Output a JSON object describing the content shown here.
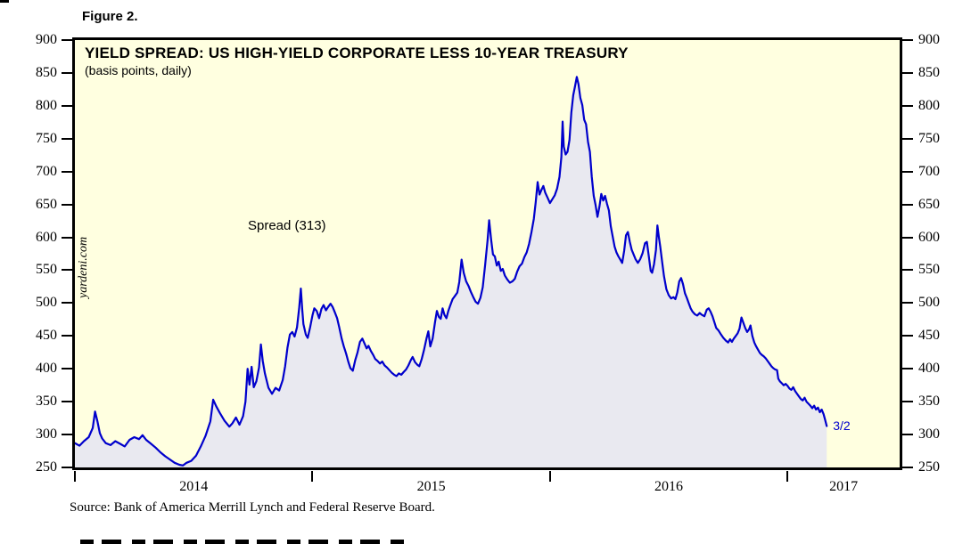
{
  "figure_label": "Figure 2.",
  "chart": {
    "title": "YIELD SPREAD: US HIGH-YIELD CORPORATE LESS 10-YEAR TREASURY",
    "subtitle": "(basis points, daily)",
    "series_label": "Spread (313)",
    "last_date_label": "3/2",
    "watermark": "yardeni.com",
    "colors": {
      "line": "#0000CC",
      "fill": "#E9E9F0",
      "plot_bg": "#FFFFE0",
      "annotation": "#0000CC",
      "axis": "#000000"
    }
  },
  "source_note": "Source: Bank of America Merrill Lynch and Federal Reserve Board.",
  "chart_data": {
    "type": "area",
    "title": "YIELD SPREAD: US HIGH-YIELD CORPORATE LESS 10-YEAR TREASURY",
    "subtitle": "(basis points, daily)",
    "ylabel": "basis points",
    "grid": false,
    "legend": "inline label",
    "y_range": [
      250,
      900
    ],
    "y_ticks": [
      900,
      850,
      800,
      750,
      700,
      650,
      600,
      550,
      500,
      450,
      400,
      350,
      300,
      250
    ],
    "x_range_years": [
      2014.0,
      2017.472
    ],
    "x_ticks_years": [
      2014,
      2015,
      2016,
      2017
    ],
    "x_tick_labels": [
      "2014",
      "2015",
      "2016",
      "2017"
    ],
    "last_point": {
      "date_label": "3/2",
      "value": 313
    },
    "min_point": {
      "year": 2014.455,
      "value": 253
    },
    "max_point": {
      "year": 2016.113,
      "value": 844
    },
    "points": [
      [
        2014.0,
        287
      ],
      [
        2014.019,
        283
      ],
      [
        2014.038,
        290
      ],
      [
        2014.058,
        296
      ],
      [
        2014.075,
        310
      ],
      [
        2014.085,
        335
      ],
      [
        2014.095,
        320
      ],
      [
        2014.105,
        302
      ],
      [
        2014.115,
        294
      ],
      [
        2014.13,
        287
      ],
      [
        2014.15,
        284
      ],
      [
        2014.17,
        290
      ],
      [
        2014.19,
        286
      ],
      [
        2014.21,
        282
      ],
      [
        2014.23,
        292
      ],
      [
        2014.25,
        296
      ],
      [
        2014.27,
        293
      ],
      [
        2014.285,
        299
      ],
      [
        2014.3,
        292
      ],
      [
        2014.32,
        286
      ],
      [
        2014.34,
        280
      ],
      [
        2014.36,
        273
      ],
      [
        2014.38,
        267
      ],
      [
        2014.4,
        262
      ],
      [
        2014.42,
        257
      ],
      [
        2014.44,
        254
      ],
      [
        2014.455,
        253
      ],
      [
        2014.47,
        257
      ],
      [
        2014.49,
        260
      ],
      [
        2014.51,
        268
      ],
      [
        2014.53,
        282
      ],
      [
        2014.55,
        298
      ],
      [
        2014.57,
        320
      ],
      [
        2014.582,
        353
      ],
      [
        2014.595,
        343
      ],
      [
        2014.61,
        333
      ],
      [
        2014.63,
        321
      ],
      [
        2014.65,
        312
      ],
      [
        2014.663,
        317
      ],
      [
        2014.678,
        326
      ],
      [
        2014.693,
        315
      ],
      [
        2014.708,
        328
      ],
      [
        2014.718,
        350
      ],
      [
        2014.727,
        400
      ],
      [
        2014.735,
        376
      ],
      [
        2014.744,
        403
      ],
      [
        2014.753,
        372
      ],
      [
        2014.764,
        381
      ],
      [
        2014.775,
        402
      ],
      [
        2014.783,
        437
      ],
      [
        2014.791,
        412
      ],
      [
        2014.8,
        393
      ],
      [
        2014.815,
        371
      ],
      [
        2014.83,
        362
      ],
      [
        2014.845,
        371
      ],
      [
        2014.86,
        367
      ],
      [
        2014.875,
        383
      ],
      [
        2014.885,
        404
      ],
      [
        2014.895,
        432
      ],
      [
        2014.905,
        452
      ],
      [
        2014.915,
        456
      ],
      [
        2014.925,
        449
      ],
      [
        2014.935,
        463
      ],
      [
        2014.944,
        492
      ],
      [
        2014.951,
        522
      ],
      [
        2014.957,
        490
      ],
      [
        2014.962,
        468
      ],
      [
        2014.972,
        452
      ],
      [
        2014.98,
        447
      ],
      [
        2014.99,
        463
      ],
      [
        2015.0,
        481
      ],
      [
        2015.008,
        492
      ],
      [
        2015.018,
        488
      ],
      [
        2015.028,
        477
      ],
      [
        2015.038,
        491
      ],
      [
        2015.047,
        497
      ],
      [
        2015.057,
        489
      ],
      [
        2015.066,
        494
      ],
      [
        2015.076,
        499
      ],
      [
        2015.085,
        494
      ],
      [
        2015.094,
        486
      ],
      [
        2015.104,
        477
      ],
      [
        2015.113,
        463
      ],
      [
        2015.123,
        446
      ],
      [
        2015.132,
        434
      ],
      [
        2015.142,
        423
      ],
      [
        2015.151,
        411
      ],
      [
        2015.16,
        401
      ],
      [
        2015.17,
        397
      ],
      [
        2015.18,
        413
      ],
      [
        2015.19,
        425
      ],
      [
        2015.2,
        441
      ],
      [
        2015.21,
        446
      ],
      [
        2015.22,
        438
      ],
      [
        2015.228,
        431
      ],
      [
        2015.236,
        435
      ],
      [
        2015.246,
        427
      ],
      [
        2015.256,
        421
      ],
      [
        2015.264,
        415
      ],
      [
        2015.274,
        412
      ],
      [
        2015.284,
        408
      ],
      [
        2015.294,
        411
      ],
      [
        2015.304,
        405
      ],
      [
        2015.314,
        402
      ],
      [
        2015.324,
        398
      ],
      [
        2015.334,
        394
      ],
      [
        2015.344,
        391
      ],
      [
        2015.354,
        389
      ],
      [
        2015.364,
        393
      ],
      [
        2015.374,
        391
      ],
      [
        2015.384,
        395
      ],
      [
        2015.394,
        399
      ],
      [
        2015.404,
        405
      ],
      [
        2015.414,
        413
      ],
      [
        2015.422,
        418
      ],
      [
        2015.432,
        410
      ],
      [
        2015.442,
        406
      ],
      [
        2015.45,
        404
      ],
      [
        2015.46,
        415
      ],
      [
        2015.47,
        429
      ],
      [
        2015.48,
        446
      ],
      [
        2015.488,
        457
      ],
      [
        2015.496,
        434
      ],
      [
        2015.506,
        446
      ],
      [
        2015.516,
        471
      ],
      [
        2015.524,
        488
      ],
      [
        2015.532,
        479
      ],
      [
        2015.54,
        476
      ],
      [
        2015.548,
        492
      ],
      [
        2015.556,
        482
      ],
      [
        2015.564,
        477
      ],
      [
        2015.572,
        488
      ],
      [
        2015.58,
        496
      ],
      [
        2015.59,
        506
      ],
      [
        2015.6,
        511
      ],
      [
        2015.61,
        516
      ],
      [
        2015.618,
        532
      ],
      [
        2015.628,
        566
      ],
      [
        2015.637,
        546
      ],
      [
        2015.647,
        533
      ],
      [
        2015.657,
        526
      ],
      [
        2015.667,
        517
      ],
      [
        2015.677,
        509
      ],
      [
        2015.687,
        502
      ],
      [
        2015.697,
        499
      ],
      [
        2015.707,
        508
      ],
      [
        2015.717,
        524
      ],
      [
        2015.727,
        558
      ],
      [
        2015.737,
        595
      ],
      [
        2015.744,
        626
      ],
      [
        2015.752,
        597
      ],
      [
        2015.76,
        574
      ],
      [
        2015.768,
        571
      ],
      [
        2015.776,
        557
      ],
      [
        2015.784,
        563
      ],
      [
        2015.793,
        549
      ],
      [
        2015.801,
        552
      ],
      [
        2015.81,
        542
      ],
      [
        2015.82,
        536
      ],
      [
        2015.831,
        531
      ],
      [
        2015.842,
        533
      ],
      [
        2015.852,
        537
      ],
      [
        2015.862,
        548
      ],
      [
        2015.872,
        556
      ],
      [
        2015.882,
        560
      ],
      [
        2015.892,
        570
      ],
      [
        2015.902,
        577
      ],
      [
        2015.912,
        590
      ],
      [
        2015.922,
        608
      ],
      [
        2015.932,
        628
      ],
      [
        2015.94,
        653
      ],
      [
        2015.948,
        684
      ],
      [
        2015.956,
        665
      ],
      [
        2015.964,
        672
      ],
      [
        2015.972,
        678
      ],
      [
        2015.98,
        668
      ],
      [
        2015.99,
        660
      ],
      [
        2016.0,
        652
      ],
      [
        2016.01,
        658
      ],
      [
        2016.02,
        664
      ],
      [
        2016.03,
        674
      ],
      [
        2016.04,
        692
      ],
      [
        2016.048,
        722
      ],
      [
        2016.053,
        776
      ],
      [
        2016.058,
        738
      ],
      [
        2016.066,
        726
      ],
      [
        2016.074,
        730
      ],
      [
        2016.082,
        748
      ],
      [
        2016.09,
        790
      ],
      [
        2016.098,
        816
      ],
      [
        2016.106,
        831
      ],
      [
        2016.113,
        844
      ],
      [
        2016.12,
        833
      ],
      [
        2016.128,
        812
      ],
      [
        2016.136,
        801
      ],
      [
        2016.144,
        779
      ],
      [
        2016.152,
        772
      ],
      [
        2016.16,
        745
      ],
      [
        2016.168,
        730
      ],
      [
        2016.176,
        692
      ],
      [
        2016.184,
        663
      ],
      [
        2016.192,
        649
      ],
      [
        2016.2,
        631
      ],
      [
        2016.208,
        646
      ],
      [
        2016.216,
        666
      ],
      [
        2016.224,
        656
      ],
      [
        2016.232,
        663
      ],
      [
        2016.24,
        651
      ],
      [
        2016.248,
        641
      ],
      [
        2016.256,
        617
      ],
      [
        2016.264,
        601
      ],
      [
        2016.272,
        586
      ],
      [
        2016.28,
        577
      ],
      [
        2016.288,
        571
      ],
      [
        2016.296,
        566
      ],
      [
        2016.304,
        561
      ],
      [
        2016.312,
        579
      ],
      [
        2016.32,
        603
      ],
      [
        2016.328,
        608
      ],
      [
        2016.336,
        593
      ],
      [
        2016.344,
        581
      ],
      [
        2016.352,
        574
      ],
      [
        2016.36,
        567
      ],
      [
        2016.37,
        561
      ],
      [
        2016.38,
        567
      ],
      [
        2016.39,
        576
      ],
      [
        2016.4,
        591
      ],
      [
        2016.408,
        593
      ],
      [
        2016.416,
        571
      ],
      [
        2016.424,
        549
      ],
      [
        2016.43,
        546
      ],
      [
        2016.438,
        559
      ],
      [
        2016.446,
        581
      ],
      [
        2016.452,
        618
      ],
      [
        2016.458,
        601
      ],
      [
        2016.464,
        586
      ],
      [
        2016.472,
        563
      ],
      [
        2016.48,
        541
      ],
      [
        2016.49,
        521
      ],
      [
        2016.5,
        512
      ],
      [
        2016.51,
        507
      ],
      [
        2016.52,
        509
      ],
      [
        2016.528,
        506
      ],
      [
        2016.536,
        516
      ],
      [
        2016.544,
        533
      ],
      [
        2016.552,
        538
      ],
      [
        2016.56,
        529
      ],
      [
        2016.568,
        515
      ],
      [
        2016.576,
        508
      ],
      [
        2016.584,
        500
      ],
      [
        2016.592,
        492
      ],
      [
        2016.6,
        487
      ],
      [
        2016.61,
        483
      ],
      [
        2016.62,
        481
      ],
      [
        2016.63,
        485
      ],
      [
        2016.64,
        482
      ],
      [
        2016.65,
        480
      ],
      [
        2016.66,
        490
      ],
      [
        2016.668,
        492
      ],
      [
        2016.676,
        487
      ],
      [
        2016.684,
        480
      ],
      [
        2016.692,
        471
      ],
      [
        2016.7,
        462
      ],
      [
        2016.71,
        458
      ],
      [
        2016.72,
        452
      ],
      [
        2016.73,
        447
      ],
      [
        2016.74,
        443
      ],
      [
        2016.75,
        440
      ],
      [
        2016.758,
        445
      ],
      [
        2016.766,
        441
      ],
      [
        2016.774,
        446
      ],
      [
        2016.782,
        450
      ],
      [
        2016.79,
        454
      ],
      [
        2016.798,
        461
      ],
      [
        2016.806,
        478
      ],
      [
        2016.814,
        470
      ],
      [
        2016.822,
        462
      ],
      [
        2016.83,
        456
      ],
      [
        2016.838,
        460
      ],
      [
        2016.844,
        466
      ],
      [
        2016.852,
        450
      ],
      [
        2016.86,
        440
      ],
      [
        2016.868,
        434
      ],
      [
        2016.876,
        429
      ],
      [
        2016.884,
        424
      ],
      [
        2016.892,
        421
      ],
      [
        2016.9,
        419
      ],
      [
        2016.908,
        416
      ],
      [
        2016.916,
        412
      ],
      [
        2016.924,
        408
      ],
      [
        2016.932,
        404
      ],
      [
        2016.94,
        401
      ],
      [
        2016.948,
        399
      ],
      [
        2016.956,
        398
      ],
      [
        2016.961,
        385
      ],
      [
        2016.968,
        381
      ],
      [
        2016.976,
        378
      ],
      [
        2016.984,
        375
      ],
      [
        2016.992,
        377
      ],
      [
        2017.0,
        374
      ],
      [
        2017.008,
        370
      ],
      [
        2017.016,
        368
      ],
      [
        2017.024,
        372
      ],
      [
        2017.032,
        366
      ],
      [
        2017.04,
        362
      ],
      [
        2017.048,
        358
      ],
      [
        2017.056,
        354
      ],
      [
        2017.064,
        352
      ],
      [
        2017.072,
        356
      ],
      [
        2017.08,
        350
      ],
      [
        2017.088,
        347
      ],
      [
        2017.096,
        344
      ],
      [
        2017.104,
        340
      ],
      [
        2017.112,
        344
      ],
      [
        2017.12,
        338
      ],
      [
        2017.128,
        341
      ],
      [
        2017.136,
        334
      ],
      [
        2017.144,
        338
      ],
      [
        2017.152,
        331
      ],
      [
        2017.158,
        323
      ],
      [
        2017.165,
        313
      ]
    ]
  }
}
